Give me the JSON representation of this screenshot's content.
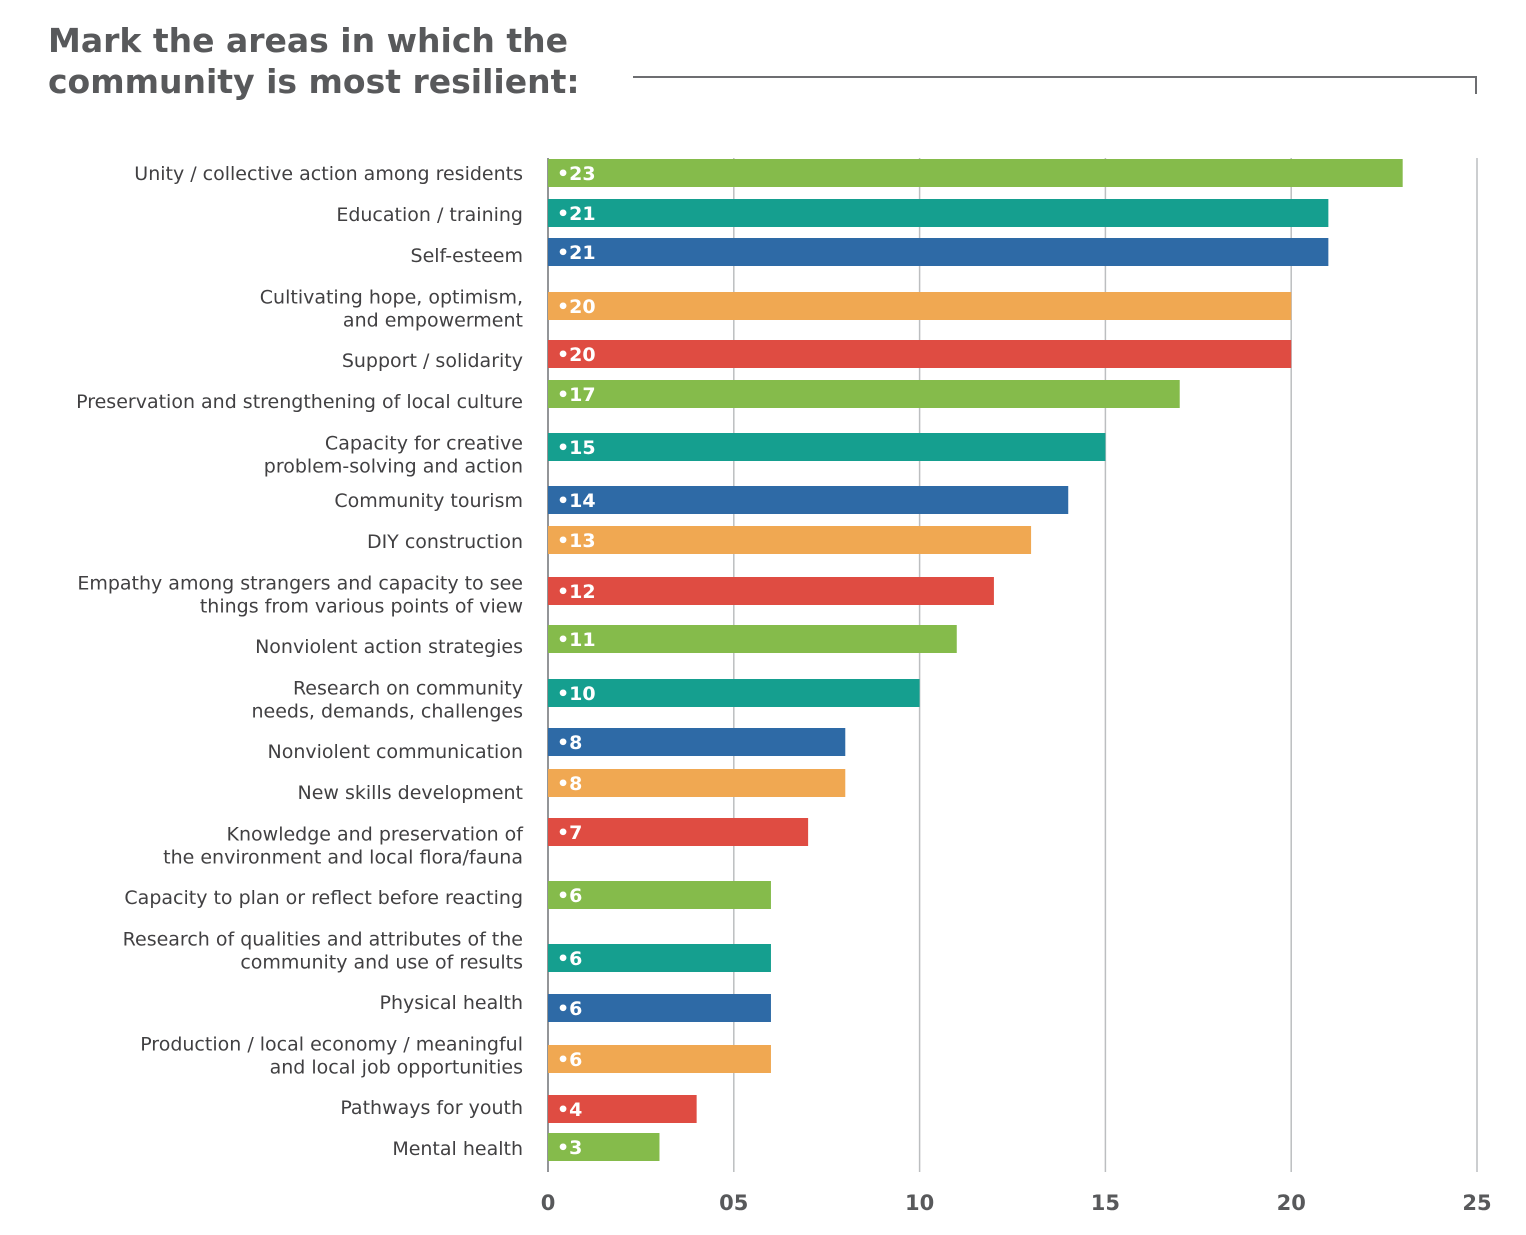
{
  "chart_data": {
    "type": "bar",
    "orientation": "horizontal",
    "title": "Mark the areas in which the community is most resilient:",
    "title_lines": [
      "Mark the areas in which the",
      "community is most resilient:"
    ],
    "xlim": [
      0,
      25
    ],
    "x_ticks": [
      "0",
      "05",
      "10",
      "15",
      "20",
      "25"
    ],
    "grid": true,
    "categories": [
      [
        "Unity / collective action among residents"
      ],
      [
        "Education / training"
      ],
      [
        "Self-esteem"
      ],
      [
        "Cultivating hope, optimism,",
        "and empowerment"
      ],
      [
        "Support / solidarity"
      ],
      [
        "Preservation and strengthening of local culture"
      ],
      [
        "Capacity for creative",
        "problem-solving and action"
      ],
      [
        "Community tourism"
      ],
      [
        "DIY construction"
      ],
      [
        "Empathy among strangers and capacity to see",
        "things from various points of view"
      ],
      [
        "Nonviolent action strategies"
      ],
      [
        "Research on community",
        "needs, demands, challenges"
      ],
      [
        "Nonviolent communication"
      ],
      [
        "New skills development"
      ],
      [
        "Knowledge and preservation of",
        "the environment and local flora/fauna"
      ],
      [
        "Capacity to plan or reflect before reacting"
      ],
      [
        "Research of qualities and attributes of the",
        "community and use of results"
      ],
      [
        "Physical health"
      ],
      [
        "Production / local economy / meaningful",
        "and local job opportunities"
      ],
      [
        "Pathways for youth"
      ],
      [
        "Mental health"
      ]
    ],
    "values": [
      23,
      21,
      21,
      20,
      20,
      17,
      15,
      14,
      13,
      12,
      11,
      10,
      8,
      8,
      7,
      6,
      6,
      6,
      6,
      4,
      3
    ],
    "value_labels": [
      "•23",
      "•21",
      "•21",
      "•20",
      "•20",
      "•17",
      "•15",
      "•14",
      "•13",
      "•12",
      "•11",
      "•10",
      "•8",
      "•8",
      "•7",
      "•6",
      "•6",
      "•6",
      "•6",
      "•4",
      "•3"
    ],
    "colors": {
      "green": "#85bb4b",
      "teal": "#159f8f",
      "blue": "#2e6aa6",
      "orange": "#f0a852",
      "red": "#df4c42",
      "grid": "#bcbec0",
      "text": "#414042"
    },
    "bar_colors": [
      "green",
      "teal",
      "blue",
      "orange",
      "red",
      "green",
      "teal",
      "blue",
      "orange",
      "red",
      "green",
      "teal",
      "blue",
      "orange",
      "red",
      "green",
      "teal",
      "blue",
      "orange",
      "red",
      "green"
    ]
  }
}
